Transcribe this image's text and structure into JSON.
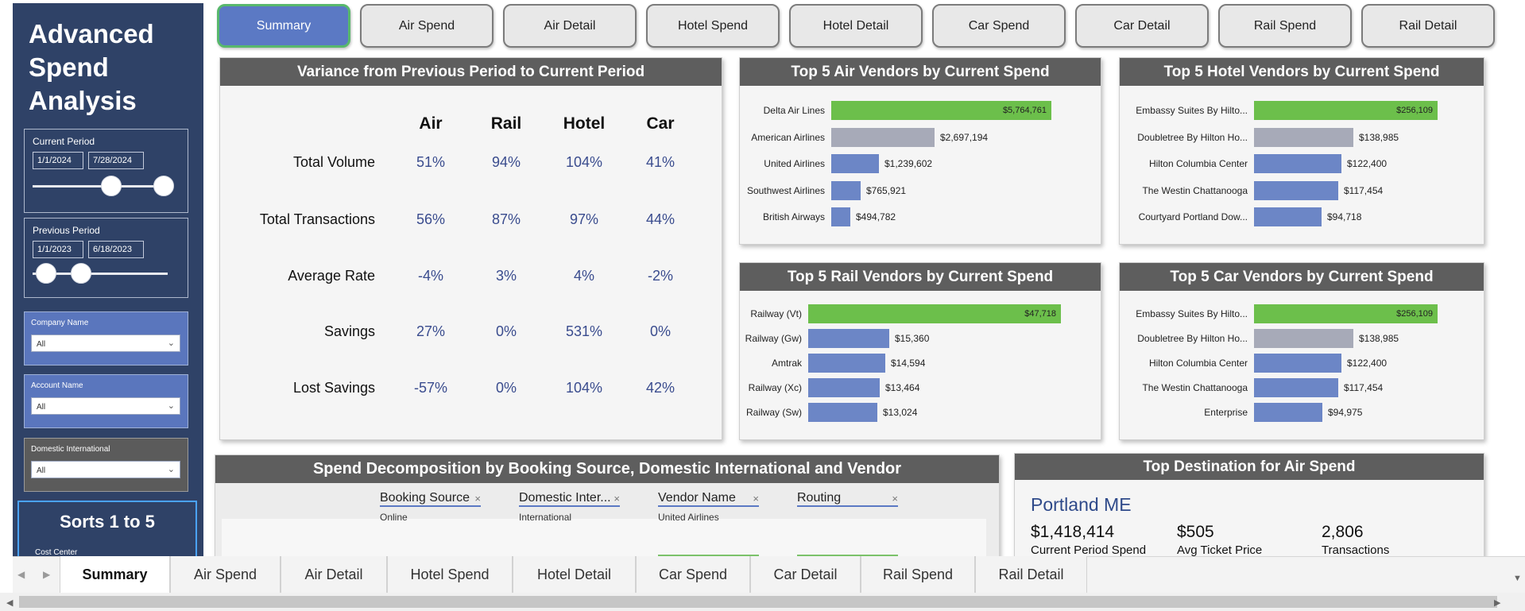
{
  "sidebar": {
    "title": "Advanced Spend Analysis",
    "current_period": {
      "label": "Current Period",
      "start": "1/1/2024",
      "end": "7/28/2024"
    },
    "previous_period": {
      "label": "Previous Period",
      "start": "1/1/2023",
      "end": "6/18/2023"
    },
    "filters": [
      {
        "label": "Company Name",
        "value": "All"
      },
      {
        "label": "Account Name",
        "value": "All"
      },
      {
        "label": "Domestic International",
        "value": "All"
      }
    ],
    "sorts": {
      "title": "Sorts 1 to 5",
      "sub": "Cost Center"
    }
  },
  "nav": [
    "Summary",
    "Air Spend",
    "Air Detail",
    "Hotel Spend",
    "Hotel Detail",
    "Car Spend",
    "Car Detail",
    "Rail Spend",
    "Rail Detail"
  ],
  "variance": {
    "title": "Variance from Previous Period to Current Period",
    "columns": [
      "Air",
      "Rail",
      "Hotel",
      "Car"
    ],
    "rows": [
      {
        "label": "Total Volume",
        "values": [
          "51%",
          "94%",
          "104%",
          "41%"
        ]
      },
      {
        "label": "Total Transactions",
        "values": [
          "56%",
          "87%",
          "97%",
          "44%"
        ]
      },
      {
        "label": "Average Rate",
        "values": [
          "-4%",
          "3%",
          "4%",
          "-2%"
        ]
      },
      {
        "label": "Savings",
        "values": [
          "27%",
          "0%",
          "531%",
          "0%"
        ]
      },
      {
        "label": "Lost Savings",
        "values": [
          "-57%",
          "0%",
          "104%",
          "42%"
        ]
      }
    ]
  },
  "colors": {
    "green": "#6cbf4b",
    "gray": "#a7aab8",
    "blue": "#6c86c6",
    "nav_active": "#5b79c4",
    "header": "#5e5e5e"
  },
  "chart_data": [
    {
      "type": "bar",
      "title": "Top 5 Air Vendors by Current Spend",
      "categories": [
        "Delta Air Lines",
        "American Airlines",
        "United Airlines",
        "Southwest Airlines",
        "British Airways"
      ],
      "values": [
        5764761,
        2697194,
        1239602,
        765921,
        494782
      ],
      "labels": [
        "$5,764,761",
        "$2,697,194",
        "$1,239,602",
        "$765,921",
        "$494,782"
      ]
    },
    {
      "type": "bar",
      "title": "Top 5 Hotel Vendors by Current Spend",
      "categories": [
        "Embassy Suites By Hilto...",
        "Doubletree By Hilton Ho...",
        "Hilton Columbia Center",
        "The Westin Chattanooga",
        "Courtyard Portland Dow..."
      ],
      "values": [
        256109,
        138985,
        122400,
        117454,
        94718
      ],
      "labels": [
        "$256,109",
        "$138,985",
        "$122,400",
        "$117,454",
        "$94,718"
      ]
    },
    {
      "type": "bar",
      "title": "Top 5 Rail Vendors by Current Spend",
      "categories": [
        "Railway (Vt)",
        "Railway (Gw)",
        "Amtrak",
        "Railway (Xc)",
        "Railway (Sw)"
      ],
      "values": [
        47718,
        15360,
        14594,
        13464,
        13024
      ],
      "labels": [
        "$47,718",
        "$15,360",
        "$14,594",
        "$13,464",
        "$13,024"
      ]
    },
    {
      "type": "bar",
      "title": "Top 5 Car Vendors by Current Spend",
      "categories": [
        "Embassy Suites By Hilto...",
        "Doubletree By Hilton Ho...",
        "Hilton Columbia Center",
        "The Westin Chattanooga",
        "Enterprise"
      ],
      "values": [
        256109,
        138985,
        122400,
        117454,
        94975
      ],
      "labels": [
        "$256,109",
        "$138,985",
        "$122,400",
        "$117,454",
        "$94,975"
      ]
    }
  ],
  "decomp": {
    "title": "Spend Decomposition by Booking Source, Domestic International and Vendor",
    "fields": [
      {
        "name": "Booking Source",
        "value": "Online"
      },
      {
        "name": "Domestic Inter...",
        "value": "International"
      },
      {
        "name": "Vendor Name",
        "value": "United Airlines"
      },
      {
        "name": "Routing",
        "value": ""
      }
    ]
  },
  "destination": {
    "title": "Top Destination for Air Spend",
    "city": "Portland ME",
    "metrics": [
      {
        "value": "$1,418,414",
        "label": "Current Period Spend"
      },
      {
        "value": "$505",
        "label": "Avg Ticket Price"
      },
      {
        "value": "2,806",
        "label": "Transactions"
      }
    ]
  },
  "tabs": [
    "Summary",
    "Air Spend",
    "Air Detail",
    "Hotel Spend",
    "Hotel Detail",
    "Car Spend",
    "Car Detail",
    "Rail Spend",
    "Rail Detail"
  ]
}
